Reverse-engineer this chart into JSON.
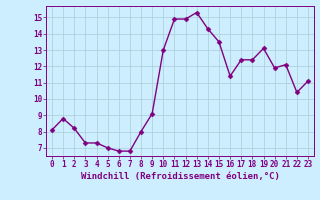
{
  "x": [
    0,
    1,
    2,
    3,
    4,
    5,
    6,
    7,
    8,
    9,
    10,
    11,
    12,
    13,
    14,
    15,
    16,
    17,
    18,
    19,
    20,
    21,
    22,
    23
  ],
  "y": [
    8.1,
    8.8,
    8.2,
    7.3,
    7.3,
    7.0,
    6.8,
    6.8,
    8.0,
    9.1,
    13.0,
    14.9,
    14.9,
    15.3,
    14.3,
    13.5,
    11.4,
    12.4,
    12.4,
    13.1,
    11.9,
    12.1,
    10.4,
    11.1
  ],
  "line_color": "#800080",
  "marker": "D",
  "marker_size": 2.5,
  "bg_color": "#cceeff",
  "grid_color": "#aaccd8",
  "xlabel": "Windchill (Refroidissement éolien,°C)",
  "xlim": [
    -0.5,
    23.5
  ],
  "ylim": [
    6.5,
    15.7
  ],
  "yticks": [
    7,
    8,
    9,
    10,
    11,
    12,
    13,
    14,
    15
  ],
  "xticks": [
    0,
    1,
    2,
    3,
    4,
    5,
    6,
    7,
    8,
    9,
    10,
    11,
    12,
    13,
    14,
    15,
    16,
    17,
    18,
    19,
    20,
    21,
    22,
    23
  ],
  "tick_color": "#800080",
  "label_color": "#800080",
  "tick_fontsize": 5.5,
  "xlabel_fontsize": 6.5,
  "line_width": 1.0,
  "spine_color": "#800080"
}
